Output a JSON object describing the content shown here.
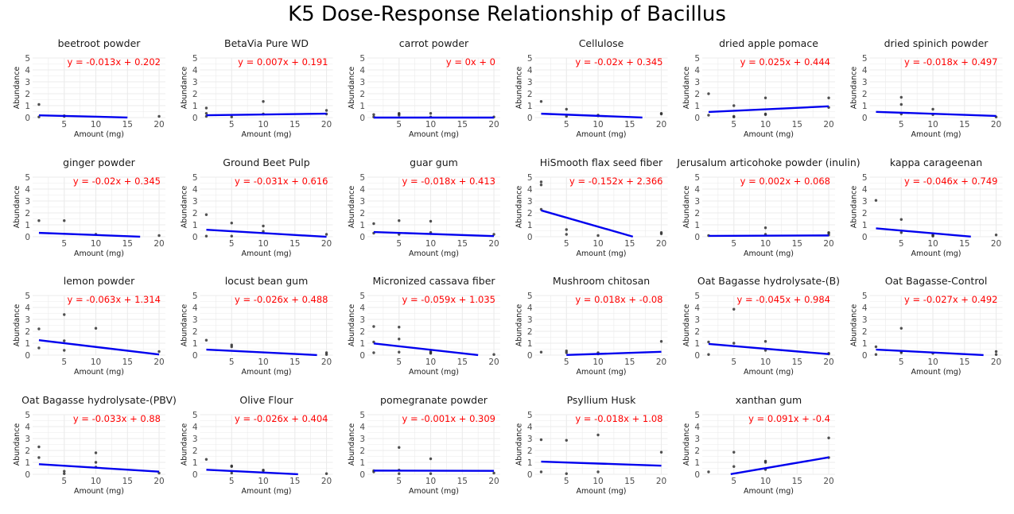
{
  "title": "K5 Dose-Response Relationship of Bacillus",
  "chart_data": {
    "type": "scatter",
    "title": "K5 Dose-Response Relationship of Bacillus",
    "xlabel": "Amount (mg)",
    "ylabel": "Abundance",
    "ylim": [
      0,
      5
    ],
    "yticks": [
      0,
      1,
      2,
      3,
      4,
      5
    ],
    "xticks": [
      5,
      10,
      15,
      20
    ],
    "grid": true,
    "colors": {
      "points": "#333333",
      "fit_line": "#0000ee",
      "equation": "#ff0000",
      "grid": "#ebebeb"
    },
    "panels": [
      {
        "name": "beetroot powder",
        "equation": "y = -0.013x + 0.202",
        "slope": -0.013,
        "intercept": 0.202,
        "line_x": [
          1,
          15
        ],
        "x_range": [
          0,
          20
        ],
        "points": [
          [
            1,
            1.1
          ],
          [
            1,
            0.05
          ],
          [
            5,
            0.15
          ],
          [
            5,
            0.1
          ],
          [
            20,
            0.1
          ]
        ]
      },
      {
        "name": "BetaVia Pure WD",
        "equation": "y = 0.007x + 0.191",
        "slope": 0.007,
        "intercept": 0.191,
        "line_x": [
          1,
          20
        ],
        "x_range": [
          0,
          20
        ],
        "points": [
          [
            1,
            0.8
          ],
          [
            1,
            0.35
          ],
          [
            1,
            0.1
          ],
          [
            5,
            0.05
          ],
          [
            10,
            1.35
          ],
          [
            10,
            0.3
          ],
          [
            20,
            0.6
          ],
          [
            20,
            0.3
          ]
        ]
      },
      {
        "name": "carrot powder",
        "equation": "y = 0x + 0",
        "slope": 0,
        "intercept": 0,
        "line_x": [
          1,
          20
        ],
        "x_range": [
          0,
          20
        ],
        "points": [
          [
            1,
            0.25
          ],
          [
            1,
            0.05
          ],
          [
            5,
            0.35
          ],
          [
            5,
            0.3
          ],
          [
            5,
            0.2
          ],
          [
            10,
            0.35
          ],
          [
            10,
            0.05
          ],
          [
            20,
            0.05
          ]
        ]
      },
      {
        "name": "Cellulose",
        "equation": "y = -0.02x + 0.345",
        "slope": -0.02,
        "intercept": 0.345,
        "line_x": [
          1,
          17
        ],
        "x_range": [
          0,
          20
        ],
        "points": [
          [
            1,
            1.35
          ],
          [
            5,
            0.7
          ],
          [
            5,
            0.1
          ],
          [
            10,
            0.2
          ],
          [
            10,
            0.15
          ],
          [
            20,
            0.35
          ],
          [
            20,
            0.3
          ]
        ]
      },
      {
        "name": "dried apple pomace",
        "equation": "y = 0.025x + 0.444",
        "slope": 0.025,
        "intercept": 0.444,
        "line_x": [
          1,
          20
        ],
        "x_range": [
          0,
          20
        ],
        "points": [
          [
            1,
            2.0
          ],
          [
            1,
            0.2
          ],
          [
            5,
            1.0
          ],
          [
            5,
            0.1
          ],
          [
            5,
            0.05
          ],
          [
            10,
            1.65
          ],
          [
            10,
            0.3
          ],
          [
            10,
            0.25
          ],
          [
            20,
            1.65
          ],
          [
            20,
            0.85
          ]
        ]
      },
      {
        "name": "dried spinich powder",
        "equation": "y = -0.018x + 0.497",
        "slope": -0.018,
        "intercept": 0.497,
        "line_x": [
          1,
          20
        ],
        "x_range": [
          0,
          20
        ],
        "points": [
          [
            5,
            1.7
          ],
          [
            5,
            1.1
          ],
          [
            5,
            0.3
          ],
          [
            10,
            0.7
          ],
          [
            10,
            0.25
          ],
          [
            20,
            0.05
          ]
        ]
      },
      {
        "name": "ginger powder",
        "equation": "y = -0.02x + 0.345",
        "slope": -0.02,
        "intercept": 0.345,
        "line_x": [
          1,
          17
        ],
        "x_range": [
          0,
          20
        ],
        "points": [
          [
            1,
            1.35
          ],
          [
            5,
            1.35
          ],
          [
            10,
            0.2
          ],
          [
            20,
            0.1
          ]
        ]
      },
      {
        "name": "Ground Beet Pulp",
        "equation": "y = -0.031x + 0.616",
        "slope": -0.031,
        "intercept": 0.616,
        "line_x": [
          1,
          20
        ],
        "x_range": [
          0,
          20
        ],
        "points": [
          [
            1,
            1.85
          ],
          [
            1,
            0.05
          ],
          [
            5,
            1.15
          ],
          [
            5,
            0.05
          ],
          [
            10,
            0.9
          ],
          [
            10,
            0.45
          ],
          [
            20,
            0.2
          ]
        ]
      },
      {
        "name": "guar gum",
        "equation": "y = -0.018x + 0.413",
        "slope": -0.018,
        "intercept": 0.413,
        "line_x": [
          1,
          20
        ],
        "x_range": [
          0,
          20
        ],
        "points": [
          [
            1,
            1.1
          ],
          [
            1,
            0.3
          ],
          [
            5,
            1.35
          ],
          [
            5,
            0.2
          ],
          [
            10,
            1.3
          ],
          [
            10,
            0.35
          ],
          [
            20,
            0.2
          ]
        ]
      },
      {
        "name": "HiSmooth flax seed fiber",
        "equation": "y = -0.152x + 2.366",
        "slope": -0.152,
        "intercept": 2.366,
        "line_x": [
          1,
          15.5
        ],
        "x_range": [
          0,
          20
        ],
        "points": [
          [
            1,
            4.6
          ],
          [
            1,
            4.35
          ],
          [
            1,
            2.3
          ],
          [
            5,
            0.6
          ],
          [
            5,
            0.2
          ],
          [
            10,
            0.1
          ],
          [
            20,
            0.35
          ],
          [
            20,
            0.25
          ]
        ]
      },
      {
        "name": "Jerusalum articohoke powder (inulin)",
        "equation": "y = 0.002x + 0.068",
        "slope": 0.002,
        "intercept": 0.068,
        "line_x": [
          1,
          20
        ],
        "x_range": [
          0,
          20
        ],
        "points": [
          [
            1,
            0.1
          ],
          [
            10,
            0.75
          ],
          [
            10,
            0.2
          ],
          [
            20,
            0.35
          ],
          [
            20,
            0.3
          ],
          [
            20,
            0.15
          ]
        ]
      },
      {
        "name": "kappa carageenan",
        "equation": "y = -0.046x + 0.749",
        "slope": -0.046,
        "intercept": 0.749,
        "line_x": [
          1,
          16
        ],
        "x_range": [
          0,
          20
        ],
        "points": [
          [
            1,
            3.05
          ],
          [
            5,
            1.45
          ],
          [
            5,
            0.35
          ],
          [
            10,
            0.15
          ],
          [
            10,
            0.1
          ],
          [
            10,
            0.05
          ],
          [
            20,
            0.15
          ]
        ]
      },
      {
        "name": "lemon powder",
        "equation": "y = -0.063x + 1.314",
        "slope": -0.063,
        "intercept": 1.314,
        "line_x": [
          1,
          20
        ],
        "x_range": [
          0,
          20
        ],
        "points": [
          [
            1,
            2.2
          ],
          [
            1,
            0.6
          ],
          [
            5,
            3.4
          ],
          [
            5,
            1.2
          ],
          [
            5,
            0.4
          ],
          [
            10,
            2.25
          ],
          [
            20,
            0.3
          ]
        ]
      },
      {
        "name": "locust bean gum",
        "equation": "y = -0.026x + 0.488",
        "slope": -0.026,
        "intercept": 0.488,
        "line_x": [
          1,
          18.5
        ],
        "x_range": [
          0,
          20
        ],
        "points": [
          [
            1,
            1.25
          ],
          [
            5,
            0.85
          ],
          [
            5,
            0.7
          ],
          [
            20,
            0.2
          ],
          [
            20,
            0.05
          ]
        ]
      },
      {
        "name": "Micronized cassava fiber",
        "equation": "y = -0.059x + 1.035",
        "slope": -0.059,
        "intercept": 1.035,
        "line_x": [
          1,
          17.5
        ],
        "x_range": [
          0,
          20
        ],
        "points": [
          [
            1,
            2.4
          ],
          [
            1,
            1.1
          ],
          [
            1,
            0.2
          ],
          [
            5,
            2.35
          ],
          [
            5,
            1.35
          ],
          [
            5,
            0.25
          ],
          [
            10,
            0.3
          ],
          [
            10,
            0.2
          ],
          [
            10,
            0.15
          ],
          [
            20,
            0.05
          ]
        ]
      },
      {
        "name": "Mushroom chitosan",
        "equation": "y = 0.018x + -0.08",
        "slope": 0.018,
        "intercept": -0.08,
        "line_x": [
          5,
          20
        ],
        "x_range": [
          0,
          20
        ],
        "points": [
          [
            1,
            0.25
          ],
          [
            5,
            0.35
          ],
          [
            5,
            0.2
          ],
          [
            10,
            0.2
          ],
          [
            10,
            0.1
          ],
          [
            20,
            1.15
          ]
        ]
      },
      {
        "name": "Oat Bagasse hydrolysate-(B)",
        "equation": "y = -0.045x + 0.984",
        "slope": -0.045,
        "intercept": 0.984,
        "line_x": [
          1,
          20
        ],
        "x_range": [
          0,
          20
        ],
        "points": [
          [
            1,
            1.1
          ],
          [
            1,
            0.05
          ],
          [
            5,
            3.85
          ],
          [
            5,
            1.0
          ],
          [
            10,
            1.15
          ],
          [
            10,
            0.4
          ],
          [
            20,
            0.15
          ],
          [
            20,
            0.1
          ]
        ]
      },
      {
        "name": "Oat Bagasse-Control",
        "equation": "y = -0.027x + 0.492",
        "slope": -0.027,
        "intercept": 0.492,
        "line_x": [
          1,
          18
        ],
        "x_range": [
          0,
          20
        ],
        "points": [
          [
            1,
            0.7
          ],
          [
            1,
            0.05
          ],
          [
            5,
            2.25
          ],
          [
            5,
            0.3
          ],
          [
            5,
            0.2
          ],
          [
            10,
            0.15
          ],
          [
            20,
            0.3
          ],
          [
            20,
            0.05
          ]
        ]
      },
      {
        "name": "Oat Bagasse hydrolysate-(PBV)",
        "equation": "y = -0.033x + 0.88",
        "slope": -0.033,
        "intercept": 0.88,
        "line_x": [
          1,
          20
        ],
        "x_range": [
          0,
          20
        ],
        "points": [
          [
            1,
            2.3
          ],
          [
            1,
            1.4
          ],
          [
            5,
            0.25
          ],
          [
            5,
            0.05
          ],
          [
            10,
            1.8
          ],
          [
            10,
            1.0
          ],
          [
            10,
            0.6
          ],
          [
            20,
            0.1
          ]
        ]
      },
      {
        "name": "Olive Flour",
        "equation": "y = -0.026x + 0.404",
        "slope": -0.026,
        "intercept": 0.404,
        "line_x": [
          1,
          15.5
        ],
        "x_range": [
          0,
          20
        ],
        "points": [
          [
            1,
            1.25
          ],
          [
            5,
            0.7
          ],
          [
            5,
            0.65
          ],
          [
            5,
            0.1
          ],
          [
            10,
            0.35
          ],
          [
            10,
            0.3
          ],
          [
            20,
            0.05
          ]
        ]
      },
      {
        "name": "pomegranate powder",
        "equation": "y = -0.001x + 0.309",
        "slope": -0.001,
        "intercept": 0.309,
        "line_x": [
          1,
          20
        ],
        "x_range": [
          0,
          20
        ],
        "points": [
          [
            1,
            0.3
          ],
          [
            1,
            0.2
          ],
          [
            5,
            2.25
          ],
          [
            5,
            0.35
          ],
          [
            5,
            0.05
          ],
          [
            10,
            1.3
          ],
          [
            10,
            0.05
          ],
          [
            20,
            0.1
          ]
        ]
      },
      {
        "name": "Psyllium Husk",
        "equation": "y = -0.018x + 1.08",
        "slope": -0.018,
        "intercept": 1.08,
        "line_x": [
          1,
          20
        ],
        "x_range": [
          0,
          20
        ],
        "points": [
          [
            1,
            2.9
          ],
          [
            1,
            0.2
          ],
          [
            5,
            2.85
          ],
          [
            5,
            0.05
          ],
          [
            10,
            3.3
          ],
          [
            10,
            0.2
          ],
          [
            20,
            1.85
          ]
        ]
      },
      {
        "name": "xanthan gum",
        "equation": "y = 0.091x + -0.4",
        "slope": 0.091,
        "intercept": -0.4,
        "line_x": [
          4.5,
          20
        ],
        "x_range": [
          0,
          20
        ],
        "points": [
          [
            1,
            0.2
          ],
          [
            5,
            1.85
          ],
          [
            5,
            0.65
          ],
          [
            10,
            1.1
          ],
          [
            10,
            1.0
          ],
          [
            10,
            0.4
          ],
          [
            20,
            3.05
          ],
          [
            20,
            1.4
          ]
        ]
      }
    ]
  }
}
